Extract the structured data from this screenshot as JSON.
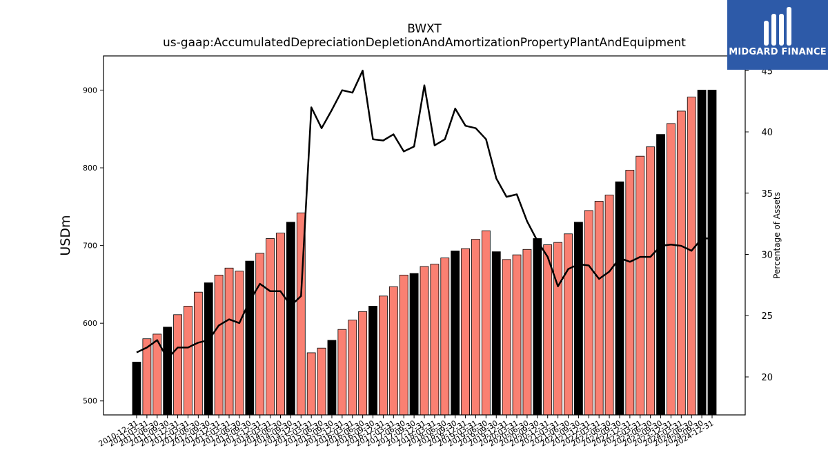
{
  "chart_data": {
    "type": "bar",
    "title": "BWXT",
    "subtitle": "us-gaap:AccumulatedDepreciationDepletionAndAmortizationPropertyPlantAndEquipment",
    "ylabel": "USDm",
    "y2label": "Percentage of Assets",
    "ylim": [
      482,
      944
    ],
    "y2lim": [
      16.9,
      46.2
    ],
    "yticks": [
      500,
      600,
      700,
      800,
      900
    ],
    "y2ticks": [
      20,
      25,
      30,
      35,
      40,
      45
    ],
    "colors": {
      "annual_bar": "#000000",
      "quarter_bar": "#fa8072",
      "line": "#000000"
    },
    "categories": [
      "2010-12-31",
      "2011-03-31",
      "2011-06-30",
      "2011-09-30",
      "2011-12-31",
      "2012-03-31",
      "2012-06-30",
      "2012-09-30",
      "2012-12-31",
      "2013-03-31",
      "2013-06-30",
      "2013-09-30",
      "2013-12-31",
      "2014-03-31",
      "2014-06-30",
      "2014-09-30",
      "2014-12-31",
      "2015-03-31",
      "2015-06-30",
      "2015-09-30",
      "2015-12-31",
      "2016-03-31",
      "2016-06-30",
      "2016-09-30",
      "2016-12-31",
      "2017-03-31",
      "2017-06-30",
      "2017-09-30",
      "2017-12-31",
      "2018-03-31",
      "2018-06-30",
      "2018-09-30",
      "2018-12-31",
      "2019-03-31",
      "2019-06-30",
      "2019-09-30",
      "2019-12-31",
      "2020-03-31",
      "2020-06-30",
      "2020-09-30",
      "2020-12-31",
      "2021-03-31",
      "2021-06-30",
      "2021-09-30",
      "2021-12-31",
      "2022-03-31",
      "2022-06-30",
      "2022-09-30",
      "2022-12-31",
      "2023-03-31",
      "2023-06-30",
      "2023-09-30",
      "2023-12-31",
      "2024-03-31",
      "2024-06-30",
      "2024-09-30",
      "2024-12-31"
    ],
    "annual_flags": [
      1,
      0,
      0,
      1,
      0,
      0,
      0,
      1,
      0,
      0,
      0,
      1,
      0,
      0,
      0,
      1,
      0,
      0,
      0,
      1,
      0,
      0,
      0,
      1,
      0,
      0,
      0,
      1,
      0,
      0,
      0,
      1,
      0,
      0,
      0,
      1,
      0,
      0,
      0,
      1,
      0,
      0,
      0,
      1,
      0,
      0,
      0,
      1,
      0,
      0,
      0,
      1,
      0,
      0,
      0,
      1,
      1
    ],
    "series": [
      {
        "type": "bar",
        "values": [
          550,
          580,
          586,
          595,
          611,
          622,
          640,
          652,
          662,
          671,
          667,
          680,
          690,
          709,
          716,
          730,
          742,
          562,
          568,
          578,
          592,
          604,
          615,
          622,
          635,
          647,
          662,
          664,
          673,
          676,
          684,
          693,
          696,
          708,
          719,
          692,
          682,
          688,
          695,
          709,
          701,
          704,
          715,
          730,
          745,
          757,
          765,
          782,
          797,
          815,
          827,
          843,
          857,
          873,
          891,
          900,
          900
        ]
      },
      {
        "type": "line",
        "values": [
          22.0,
          22.4,
          23.0,
          21.5,
          22.4,
          22.4,
          22.8,
          23.0,
          24.2,
          24.7,
          24.4,
          26.2,
          27.6,
          27.0,
          27.0,
          25.8,
          26.6,
          42.0,
          40.3,
          41.8,
          43.4,
          43.2,
          45.0,
          39.4,
          39.3,
          39.8,
          38.4,
          38.8,
          43.8,
          38.9,
          39.4,
          41.9,
          40.5,
          40.3,
          39.4,
          36.2,
          34.7,
          34.9,
          32.7,
          31.1,
          29.8,
          27.4,
          28.8,
          29.2,
          29.1,
          28.0,
          28.6,
          29.7,
          29.4,
          29.8,
          29.8,
          30.7,
          30.8,
          30.7,
          30.3,
          31.3,
          31.3
        ]
      }
    ]
  },
  "logo": {
    "text": "MIDGARD FINANCE"
  }
}
